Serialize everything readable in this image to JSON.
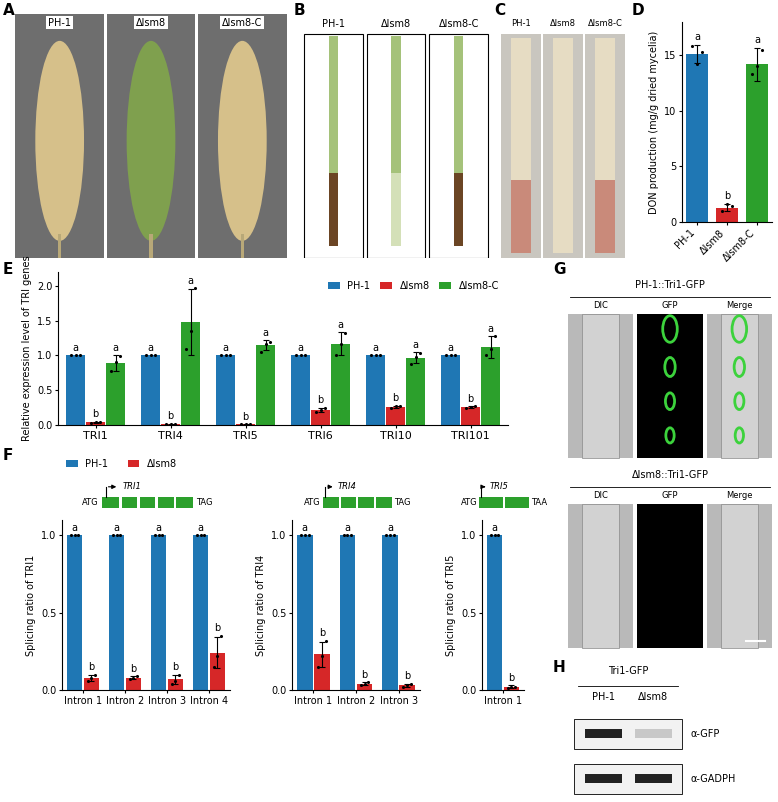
{
  "panels": {
    "A": {
      "label": "A",
      "samples": [
        "PH-1",
        "Δlsm8",
        "Δlsm8-C"
      ]
    },
    "B": {
      "label": "B",
      "samples": [
        "PH-1",
        "Δlsm8",
        "Δlsm8-C"
      ]
    },
    "C": {
      "label": "C",
      "samples": [
        "PH-1",
        "Δlsm8",
        "Δlsm8-C"
      ]
    },
    "G": {
      "label": "G",
      "rows": [
        "PH-1::Tri1-GFP",
        "Δlsm8::Tri1-GFP"
      ],
      "columns": [
        "DIC",
        "GFP",
        "Merge"
      ]
    },
    "H": {
      "label": "H",
      "header": "Tri1-GFP",
      "lanes": [
        "PH-1",
        "Δlsm8"
      ],
      "blots": [
        "α-GFP",
        "α-GADPH"
      ]
    }
  },
  "chart_data": [
    {
      "panel": "D",
      "type": "bar",
      "categories": [
        "PH-1",
        "Δlsm8",
        "Δlsm8-C"
      ],
      "values": [
        15.1,
        1.3,
        14.2
      ],
      "errors": [
        0.8,
        0.3,
        1.5
      ],
      "points": [
        [
          15.8,
          14.2,
          15.3
        ],
        [
          1.0,
          1.6,
          1.4
        ],
        [
          13.3,
          14.0,
          15.5
        ]
      ],
      "letters": [
        "a",
        "b",
        "a"
      ],
      "colors": [
        "#1f77b4",
        "#d62728",
        "#2ca02c"
      ],
      "y_label": "DON production (mg/g dried mycelia)",
      "ylim": [
        0,
        18
      ],
      "yticks": [
        0,
        5,
        10,
        15
      ]
    },
    {
      "panel": "E",
      "type": "bar",
      "categories": [
        "TRI1",
        "TRI4",
        "TRI5",
        "TRI6",
        "TRI10",
        "TRI101"
      ],
      "series": [
        {
          "name": "PH-1",
          "color": "#1f77b4",
          "values": [
            1,
            1,
            1,
            1,
            1,
            1
          ],
          "points": [
            [
              1,
              1,
              1
            ],
            [
              1,
              1,
              1
            ],
            [
              1,
              1,
              1
            ],
            [
              1,
              1,
              1
            ],
            [
              1,
              1,
              1
            ],
            [
              1,
              1,
              1
            ]
          ],
          "letters": [
            "a",
            "a",
            "a",
            "a",
            "a",
            "a"
          ]
        },
        {
          "name": "Δlsm8",
          "color": "#d62728",
          "values": [
            0.04,
            0.01,
            0.01,
            0.22,
            0.26,
            0.26
          ],
          "errors": [
            0.01,
            0.005,
            0.005,
            0.03,
            0.02,
            0.01
          ],
          "points": [
            [
              0.03,
              0.05,
              0.04
            ],
            [
              0.01,
              0.01,
              0.02
            ],
            [
              0.01,
              0.01,
              0.01
            ],
            [
              0.19,
              0.22,
              0.25
            ],
            [
              0.24,
              0.27,
              0.27
            ],
            [
              0.25,
              0.26,
              0.27
            ]
          ],
          "letters": [
            "b",
            "b",
            "b",
            "b",
            "b",
            "b"
          ]
        },
        {
          "name": "Δlsm8-C",
          "color": "#2ca02c",
          "values": [
            0.89,
            1.48,
            1.15,
            1.17,
            0.97,
            1.12
          ],
          "errors": [
            0.11,
            0.48,
            0.07,
            0.17,
            0.08,
            0.16
          ],
          "points": [
            [
              0.78,
              0.9,
              0.99
            ],
            [
              1.1,
              1.35,
              1.97
            ],
            [
              1.05,
              1.17,
              1.2
            ],
            [
              1.0,
              1.17,
              1.33
            ],
            [
              0.88,
              0.98,
              1.04
            ],
            [
              1.0,
              1.1,
              1.28
            ]
          ],
          "letters": [
            "a",
            "a",
            "a",
            "a",
            "a",
            "a"
          ]
        }
      ],
      "legend": "upper right",
      "y_label": "Relative expression level of TRI genes",
      "ylim": [
        0,
        2.2
      ],
      "yticks": [
        {
          "value": 0,
          "label": "0.0"
        },
        {
          "value": 0.5,
          "label": "0.5"
        },
        {
          "value": 1.0,
          "label": "1.0"
        },
        {
          "value": 1.5,
          "label": "1.5"
        },
        {
          "value": 2.0,
          "label": "2.0"
        }
      ]
    },
    {
      "panel": "F",
      "type": "bar",
      "gene": "TRI1",
      "gene_start": "ATG",
      "gene_stop": "TAG",
      "categories": [
        "Intron 1",
        "Intron 2",
        "Intron 3",
        "Intron 4"
      ],
      "series": [
        {
          "name": "PH-1",
          "color": "#1f77b4",
          "values": [
            1,
            1,
            1,
            1
          ],
          "points": [
            [
              1,
              1,
              1
            ],
            [
              1,
              1,
              1
            ],
            [
              1,
              1,
              1
            ],
            [
              1,
              1,
              1
            ]
          ],
          "letters": [
            "a",
            "a",
            "a",
            "a"
          ]
        },
        {
          "name": "Δlsm8",
          "color": "#d62728",
          "values": [
            0.08,
            0.08,
            0.07,
            0.24
          ],
          "errors": [
            0.02,
            0.01,
            0.03,
            0.1
          ],
          "points": [
            [
              0.06,
              0.08,
              0.1
            ],
            [
              0.07,
              0.08,
              0.09
            ],
            [
              0.04,
              0.06,
              0.1
            ],
            [
              0.15,
              0.22,
              0.35
            ]
          ],
          "letters": [
            "b",
            "b",
            "b",
            "b"
          ]
        }
      ],
      "legend": "lower left",
      "y_label": "Splicing ratio of TRI1",
      "ylim": [
        0,
        1.1
      ],
      "yticks": [
        {
          "value": 0,
          "label": "0.0"
        },
        {
          "value": 0.5,
          "label": "0.5"
        },
        {
          "value": 1.0,
          "label": "1.0"
        }
      ]
    },
    {
      "type": "bar",
      "gene": "TRI4",
      "gene_start": "ATG",
      "gene_stop": "TAG",
      "categories": [
        "Intron 1",
        "Intron 2",
        "Intron 3"
      ],
      "series": [
        {
          "name": "PH-1",
          "color": "#1f77b4",
          "values": [
            1,
            1,
            1
          ],
          "points": [
            [
              1,
              1,
              1
            ],
            [
              1,
              1,
              1
            ],
            [
              1,
              1,
              1
            ]
          ],
          "letters": [
            "a",
            "a",
            "a"
          ]
        },
        {
          "name": "Δlsm8",
          "color": "#d62728",
          "values": [
            0.23,
            0.04,
            0.03
          ],
          "errors": [
            0.08,
            0.01,
            0.01
          ],
          "points": [
            [
              0.15,
              0.22,
              0.32
            ],
            [
              0.03,
              0.04,
              0.05
            ],
            [
              0.02,
              0.03,
              0.04
            ]
          ],
          "letters": [
            "b",
            "b",
            "b"
          ]
        }
      ],
      "y_label": "Splicing ratio of TRI4",
      "ylim": [
        0,
        1.1
      ],
      "yticks": [
        {
          "value": 0,
          "label": "0.0"
        },
        {
          "value": 0.5,
          "label": "0.5"
        },
        {
          "value": 1.0,
          "label": "1.0"
        }
      ]
    },
    {
      "type": "bar",
      "gene": "TRI5",
      "gene_start": "ATG",
      "gene_stop": "TAA",
      "categories": [
        "Intron 1"
      ],
      "series": [
        {
          "name": "PH-1",
          "color": "#1f77b4",
          "values": [
            1
          ],
          "points": [
            [
              1,
              1,
              1
            ]
          ],
          "letters": [
            "a"
          ]
        },
        {
          "name": "Δlsm8",
          "color": "#d62728",
          "values": [
            0.02
          ],
          "errors": [
            0.01
          ],
          "points": [
            [
              0.01,
              0.02,
              0.02
            ]
          ],
          "letters": [
            "b"
          ]
        }
      ],
      "y_label": "Splicing ratio of TRI5",
      "ylim": [
        0,
        1.1
      ],
      "yticks": [
        {
          "value": 0,
          "label": "0.0"
        },
        {
          "value": 0.5,
          "label": "0.5"
        },
        {
          "value": 1.0,
          "label": "1.0"
        }
      ]
    }
  ]
}
